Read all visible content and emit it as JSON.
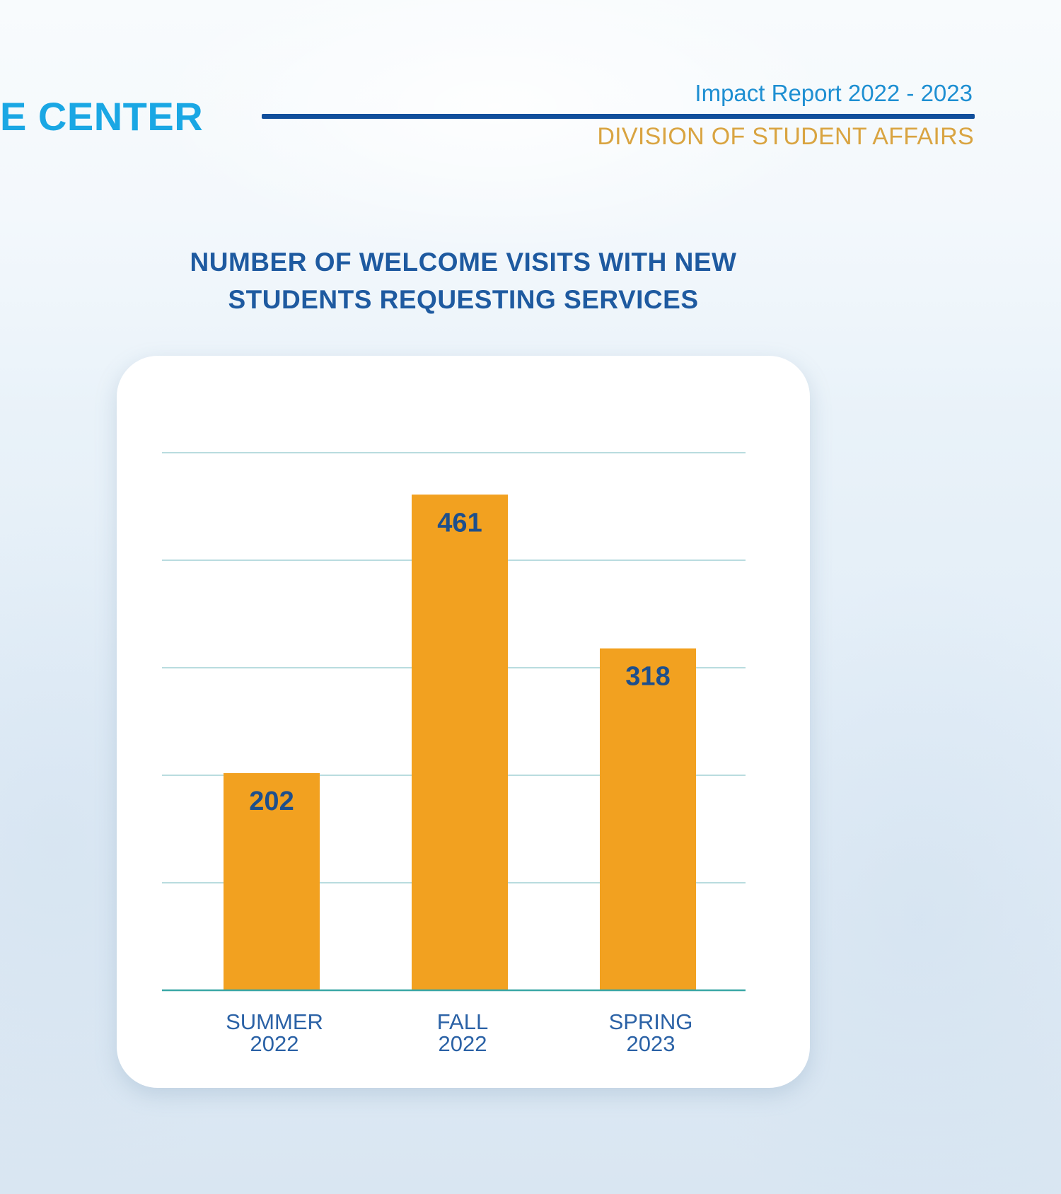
{
  "header": {
    "section_title": "E CENTER",
    "report_label": "Impact Report 2022 - 2023",
    "division_label": "DIVISION OF STUDENT AFFAIRS"
  },
  "colors": {
    "bar": "#f2a120",
    "grid": "#b9dcdf",
    "axis": "#3aa7a6",
    "value_label": "#1e4f8c",
    "category_label": "#2b62a6",
    "title": "#1e5aa0"
  },
  "chart_data": {
    "type": "bar",
    "title_lines": [
      "NUMBER OF WELCOME VISITS WITH NEW",
      "STUDENTS REQUESTING SERVICES"
    ],
    "categories": [
      {
        "lines": [
          "SUMMER",
          "2022"
        ]
      },
      {
        "lines": [
          "FALL",
          "2022"
        ]
      },
      {
        "lines": [
          "SPRING",
          "2023"
        ]
      }
    ],
    "values": [
      202,
      461,
      318
    ],
    "data_labels": [
      "202",
      "461",
      "318"
    ],
    "xlabel": "",
    "ylabel": "",
    "ylim": [
      0,
      500
    ],
    "gridlines": [
      100,
      200,
      300,
      400,
      500
    ],
    "grid": true,
    "legend": "none"
  }
}
